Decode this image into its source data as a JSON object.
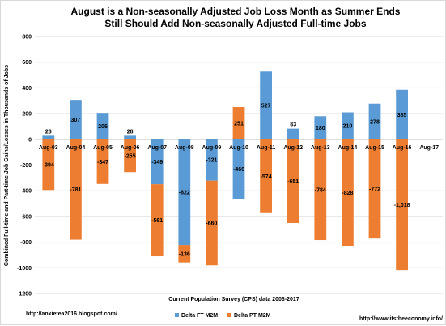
{
  "chart_data": {
    "type": "bar",
    "stacked": true,
    "title_lines": [
      "August is a Non-seasonally Adjusted Job Loss Month as Summer Ends",
      "Still Should Add Non-seasonally Adjusted Full-time Jobs"
    ],
    "xlabel": "Current Population Survey (CPS) data 2003-2017",
    "ylabel": "Combined Full-time and Part-time Job Gains/Losses in Thousands of Jobs",
    "ylim": [
      -1200,
      800
    ],
    "yticks": [
      800,
      600,
      400,
      200,
      0,
      -200,
      -400,
      -600,
      -800,
      -1000,
      -1200
    ],
    "grid": true,
    "legend_position": "bottom-center",
    "categories": [
      "Aug-03",
      "Aug-04",
      "Aug-05",
      "Aug-06",
      "Aug-07",
      "Aug-08",
      "Aug-09",
      "Aug-10",
      "Aug-11",
      "Aug-12",
      "Aug-13",
      "Aug-14",
      "Aug-15",
      "Aug-16",
      "Aug-17"
    ],
    "series": [
      {
        "name": "Delta FT M2M",
        "color": "#5b9bd5",
        "values": [
          28,
          307,
          206,
          28,
          -349,
          -822,
          -321,
          -466,
          527,
          83,
          180,
          210,
          278,
          385,
          null
        ],
        "labels": [
          "28",
          "307",
          "206",
          "28",
          "-349",
          "-822",
          "-321",
          "-466",
          "527",
          "83",
          "180",
          "210",
          "278",
          "385",
          ""
        ]
      },
      {
        "name": "Delta PT M2M",
        "color": "#ed7d31",
        "values": [
          -394,
          -781,
          -347,
          -255,
          -561,
          -136,
          -660,
          251,
          -574,
          -651,
          -784,
          -828,
          -772,
          -1018,
          null
        ],
        "labels": [
          "-394",
          "-781",
          "-347",
          "-255",
          "-561",
          "-136",
          "-660",
          "251",
          "-574",
          "-651",
          "-784",
          "-828",
          "-772",
          "-1,018",
          ""
        ]
      }
    ]
  },
  "footer": {
    "left_url": "http://anxietea2016.blogspot.com/",
    "right_url": "http://www.itstheeconomy.info/"
  }
}
